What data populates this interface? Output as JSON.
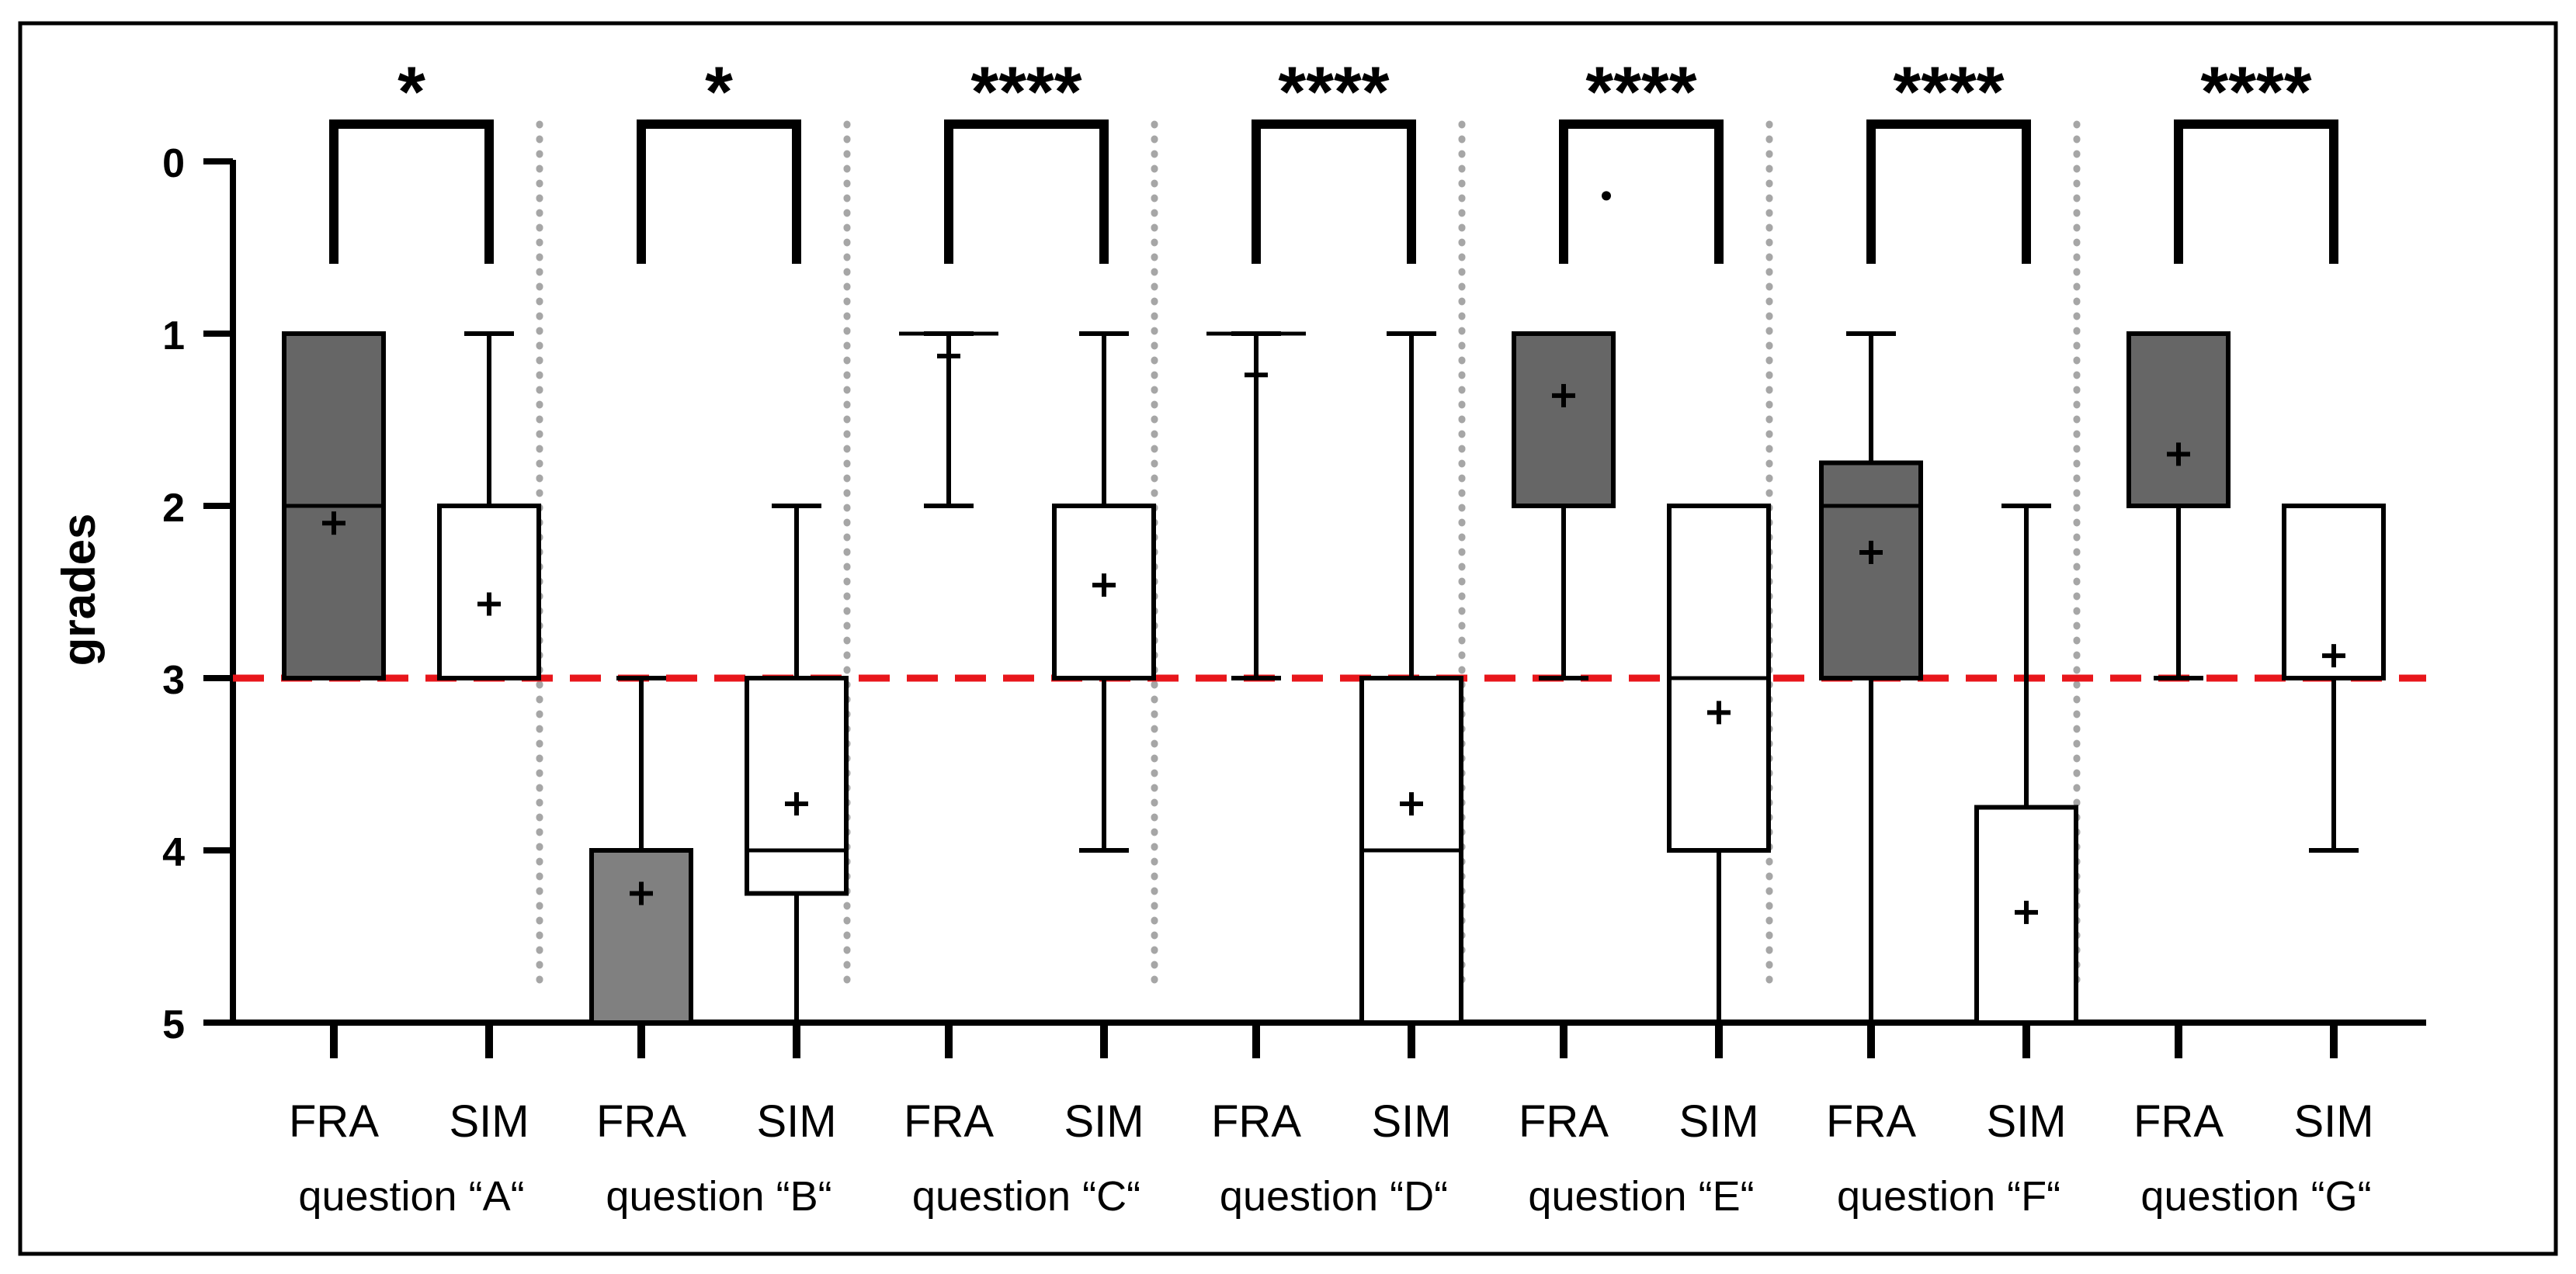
{
  "chart_data": {
    "type": "box",
    "ylabel": "grades",
    "y_ticks": [
      "0",
      "1",
      "2",
      "3",
      "4",
      "5"
    ],
    "ylim": [
      5,
      0
    ],
    "y_inverted": true,
    "reference_line": {
      "y": 3,
      "color": "#e8161b",
      "style": "dashed"
    },
    "groups": [
      {
        "label": "question “A“",
        "significance": "*",
        "boxes": [
          {
            "label": "FRA",
            "whisker_low": 1,
            "q1": 1,
            "median": 2,
            "q3": 3,
            "whisker_high": 3,
            "mean": 2.1,
            "fill": "#666666"
          },
          {
            "label": "SIM",
            "whisker_low": 1,
            "q1": 2,
            "median": 3,
            "q3": 3,
            "whisker_high": 3,
            "mean": 2.57,
            "fill": "#ffffff"
          }
        ]
      },
      {
        "label": "question “B“",
        "significance": "*",
        "boxes": [
          {
            "label": "FRA",
            "whisker_low": 3,
            "q1": 4,
            "median": 4,
            "q3": 5,
            "whisker_high": 5,
            "mean": 4.25,
            "fill": "#808080"
          },
          {
            "label": "SIM",
            "whisker_low": 2,
            "q1": 3,
            "median": 4,
            "q3": 4.25,
            "whisker_high": 5,
            "mean": 3.73,
            "fill": "#ffffff"
          }
        ]
      },
      {
        "label": "question “C“",
        "significance": "****",
        "boxes": [
          {
            "label": "FRA",
            "whisker_low": 1,
            "q1": 1,
            "median": 1,
            "q3": 1,
            "whisker_high": 2,
            "mean": 1.13,
            "fill": "#666666"
          },
          {
            "label": "SIM",
            "whisker_low": 1,
            "q1": 2,
            "median": 2,
            "q3": 3,
            "whisker_high": 4,
            "mean": 2.46,
            "fill": "#ffffff"
          }
        ]
      },
      {
        "label": "question “D“",
        "significance": "****",
        "boxes": [
          {
            "label": "FRA",
            "whisker_low": 1,
            "q1": 1,
            "median": 1,
            "q3": 1,
            "whisker_high": 3,
            "mean": 1.24,
            "fill": "#666666"
          },
          {
            "label": "SIM",
            "whisker_low": 1,
            "q1": 3,
            "median": 4,
            "q3": 5,
            "whisker_high": 5,
            "mean": 3.73,
            "fill": "#ffffff"
          }
        ]
      },
      {
        "label": "question “E“",
        "significance": "****",
        "outliers": [
          0.2
        ],
        "boxes": [
          {
            "label": "FRA",
            "whisker_low": 1,
            "q1": 1,
            "median": 1,
            "q3": 2,
            "whisker_high": 3,
            "mean": 1.36,
            "fill": "#666666"
          },
          {
            "label": "SIM",
            "whisker_low": 2,
            "q1": 2,
            "median": 3,
            "q3": 4,
            "whisker_high": 5,
            "mean": 3.2,
            "fill": "#ffffff"
          }
        ]
      },
      {
        "label": "question “F“",
        "significance": "****",
        "boxes": [
          {
            "label": "FRA",
            "whisker_low": 1,
            "q1": 1.75,
            "median": 2,
            "q3": 3,
            "whisker_high": 5,
            "mean": 2.27,
            "fill": "#666666"
          },
          {
            "label": "SIM",
            "whisker_low": 2,
            "q1": 3.75,
            "median": 5,
            "q3": 5,
            "whisker_high": 5,
            "mean": 4.36,
            "fill": "#ffffff"
          }
        ]
      },
      {
        "label": "question “G“",
        "significance": "****",
        "boxes": [
          {
            "label": "FRA",
            "whisker_low": 1,
            "q1": 1,
            "median": 2,
            "q3": 2,
            "whisker_high": 3,
            "mean": 1.7,
            "fill": "#666666"
          },
          {
            "label": "SIM",
            "whisker_low": 2,
            "q1": 2,
            "median": 3,
            "q3": 3,
            "whisker_high": 4,
            "mean": 2.87,
            "fill": "#ffffff"
          }
        ]
      }
    ]
  }
}
